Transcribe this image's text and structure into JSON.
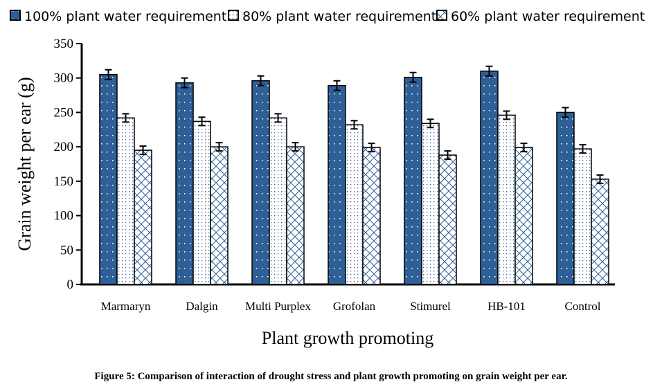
{
  "chart_data": {
    "type": "bar",
    "title": "",
    "xlabel": "Plant growth promoting",
    "ylabel": "Grain weight per ear (g)",
    "ylim": [
      0,
      350
    ],
    "yticks": [
      0,
      50,
      100,
      150,
      200,
      250,
      300,
      350
    ],
    "grid": false,
    "legend_position": "top",
    "categories": [
      "Marmaryn",
      "Dalgin",
      "Multi Purplex",
      "Grofolan",
      "Stimurel",
      "HB-101",
      "Control"
    ],
    "series": [
      {
        "name": "100% plant water requirement",
        "pattern": "dots-on-blue",
        "color": "#2E5F96",
        "values": [
          305,
          293,
          296,
          289,
          301,
          310,
          250
        ],
        "error": [
          7,
          7,
          7,
          7,
          7,
          7,
          7
        ]
      },
      {
        "name": "80% plant water requirement",
        "pattern": "blue-dots-on-white",
        "color": "#2E5F96",
        "values": [
          242,
          237,
          242,
          232,
          234,
          246,
          197
        ],
        "error": [
          6,
          6,
          6,
          6,
          6,
          6,
          6
        ]
      },
      {
        "name": "60% plant water requirement",
        "pattern": "blue-zigzag-on-white",
        "color": "#2E5F96",
        "values": [
          195,
          200,
          200,
          199,
          188,
          199,
          153
        ],
        "error": [
          6,
          6,
          6,
          6,
          6,
          6,
          6
        ]
      }
    ]
  },
  "caption": "Figure 5: Comparison of interaction of drought stress and plant growth promoting on grain weight per ear."
}
